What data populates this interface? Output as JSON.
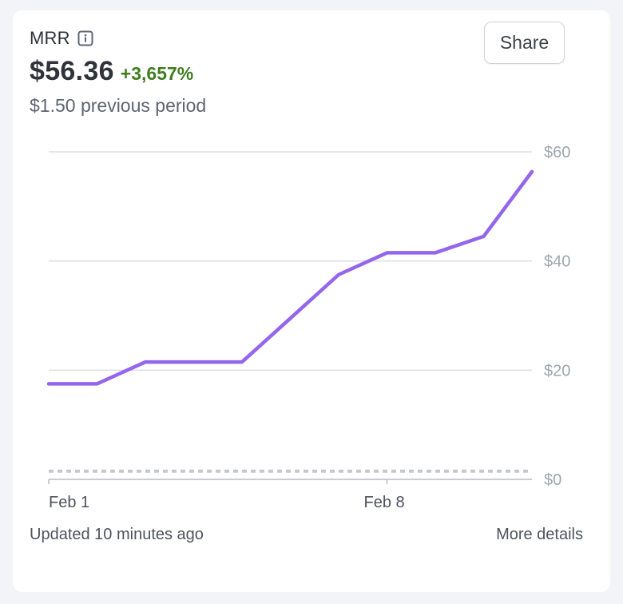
{
  "metric": {
    "title": "MRR",
    "info_icon": "info-icon",
    "value": "$56.36",
    "change": "+3,657%",
    "previous": "$1.50 previous period"
  },
  "actions": {
    "share_label": "Share",
    "more_details_label": "More details"
  },
  "footer": {
    "updated": "Updated 10 minutes ago"
  },
  "colors": {
    "line": "#9466ec",
    "previous_line": "#c5c8d0",
    "grid": "#dcdee3",
    "axis_label": "#a1a5ae",
    "change_positive": "#3f7d1f"
  },
  "chart_data": {
    "type": "line",
    "x": [
      "Feb 1",
      "Feb 2",
      "Feb 3",
      "Feb 4",
      "Feb 5",
      "Feb 6",
      "Feb 7",
      "Feb 8",
      "Feb 9",
      "Feb 10",
      "Feb 11"
    ],
    "series": [
      {
        "values": [
          17.5,
          17.5,
          21.5,
          21.5,
          21.5,
          29.5,
          37.5,
          41.5,
          41.5,
          44.5,
          56.36
        ]
      },
      {
        "values": [
          1.5,
          1.5,
          1.5,
          1.5,
          1.5,
          1.5,
          1.5,
          1.5,
          1.5,
          1.5,
          1.5
        ]
      }
    ],
    "x_ticks": [
      "Feb 1",
      "Feb 8"
    ],
    "y_ticks": [
      0,
      20,
      40,
      60
    ],
    "y_tick_labels": [
      "$0",
      "$20",
      "$40",
      "$60"
    ],
    "ylim": [
      0,
      60
    ],
    "grid": true,
    "y_axis_position": "right"
  }
}
